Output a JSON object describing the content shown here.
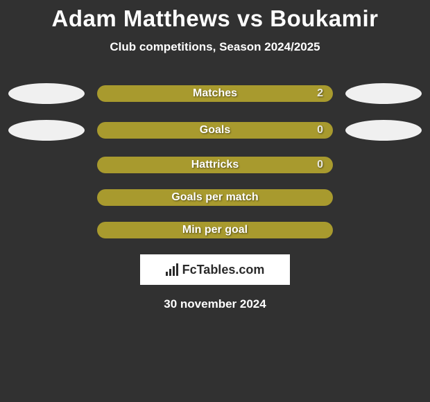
{
  "header": {
    "title": "Adam Matthews vs Boukamir",
    "subtitle": "Club competitions, Season 2024/2025"
  },
  "colors": {
    "background": "#313131",
    "bar": "#a89a2e",
    "bubble": "#f0f0f0",
    "text": "#ffffff",
    "logo_bg": "#ffffff",
    "logo_fg": "#2a2a2a"
  },
  "stats": [
    {
      "label": "Matches",
      "value": "2",
      "show_left_bubble": true,
      "show_right_bubble": true,
      "show_value": true
    },
    {
      "label": "Goals",
      "value": "0",
      "show_left_bubble": true,
      "show_right_bubble": true,
      "show_value": true
    },
    {
      "label": "Hattricks",
      "value": "0",
      "show_left_bubble": false,
      "show_right_bubble": false,
      "show_value": true
    },
    {
      "label": "Goals per match",
      "value": "",
      "show_left_bubble": false,
      "show_right_bubble": false,
      "show_value": false
    },
    {
      "label": "Min per goal",
      "value": "",
      "show_left_bubble": false,
      "show_right_bubble": false,
      "show_value": false
    }
  ],
  "logo": {
    "icon_name": "bar-chart-icon",
    "text": "FcTables.com"
  },
  "footer": {
    "date": "30 november 2024"
  }
}
